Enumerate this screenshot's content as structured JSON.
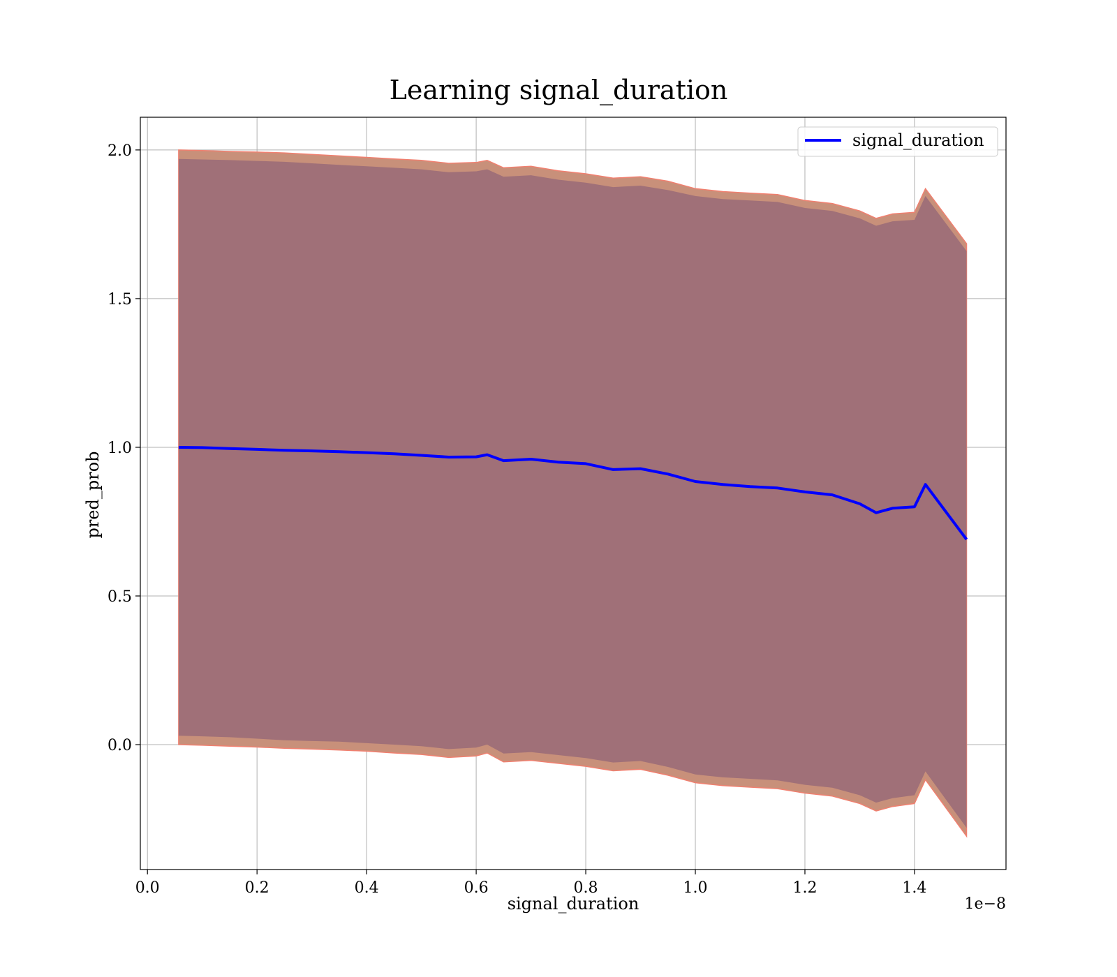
{
  "chart_data": {
    "type": "area",
    "title": "Learning signal_duration",
    "xlabel": "signal_duration",
    "ylabel": "pred_prob",
    "x_offset_text": "1e−8",
    "xlim": [
      -0.013,
      1.567
    ],
    "ylim": [
      -0.42,
      2.11
    ],
    "x_ticks": [
      0.0,
      0.2,
      0.4,
      0.6,
      0.8,
      1.0,
      1.2,
      1.4
    ],
    "x_tick_labels": [
      "0.0",
      "0.2",
      "0.4",
      "0.6",
      "0.8",
      "1.0",
      "1.2",
      "1.4"
    ],
    "y_ticks": [
      0.0,
      0.5,
      1.0,
      1.5,
      2.0
    ],
    "y_tick_labels": [
      "0.0",
      "0.5",
      "1.0",
      "1.5",
      "2.0"
    ],
    "grid": true,
    "legend_position": "top-right",
    "colors": {
      "line": "#0000ff",
      "band_outer": "#c8907a",
      "band_outer_edge": "#f08070",
      "band_inner": "#a07078",
      "grid": "#b0b0b0"
    },
    "series": [
      {
        "name": "signal_duration",
        "x": [
          0.057,
          0.1,
          0.15,
          0.2,
          0.25,
          0.3,
          0.35,
          0.4,
          0.45,
          0.5,
          0.55,
          0.6,
          0.62,
          0.65,
          0.7,
          0.75,
          0.8,
          0.85,
          0.9,
          0.95,
          1.0,
          1.05,
          1.1,
          1.15,
          1.2,
          1.25,
          1.3,
          1.33,
          1.36,
          1.4,
          1.42,
          1.495
        ],
        "y": [
          1.0,
          0.999,
          0.996,
          0.993,
          0.99,
          0.988,
          0.985,
          0.982,
          0.978,
          0.973,
          0.967,
          0.968,
          0.975,
          0.955,
          0.96,
          0.95,
          0.945,
          0.925,
          0.928,
          0.91,
          0.885,
          0.875,
          0.868,
          0.863,
          0.85,
          0.84,
          0.81,
          0.78,
          0.795,
          0.8,
          0.875,
          0.69
        ]
      }
    ],
    "bands": {
      "outer_upper": [
        2.0,
        1.998,
        1.995,
        1.993,
        1.99,
        1.985,
        1.98,
        1.975,
        1.97,
        1.965,
        1.955,
        1.958,
        1.965,
        1.94,
        1.945,
        1.93,
        1.92,
        1.905,
        1.91,
        1.895,
        1.87,
        1.86,
        1.855,
        1.85,
        1.83,
        1.82,
        1.795,
        1.77,
        1.785,
        1.79,
        1.87,
        1.685
      ],
      "inner_upper": [
        1.97,
        1.968,
        1.966,
        1.963,
        1.96,
        1.955,
        1.95,
        1.945,
        1.94,
        1.935,
        1.925,
        1.928,
        1.935,
        1.91,
        1.915,
        1.9,
        1.89,
        1.875,
        1.88,
        1.865,
        1.845,
        1.835,
        1.83,
        1.825,
        1.805,
        1.795,
        1.77,
        1.745,
        1.76,
        1.765,
        1.845,
        1.66
      ],
      "inner_lower": [
        0.03,
        0.028,
        0.025,
        0.02,
        0.015,
        0.012,
        0.01,
        0.005,
        0.0,
        -0.005,
        -0.015,
        -0.01,
        0.0,
        -0.03,
        -0.025,
        -0.035,
        -0.045,
        -0.06,
        -0.055,
        -0.075,
        -0.1,
        -0.11,
        -0.115,
        -0.12,
        -0.135,
        -0.145,
        -0.17,
        -0.195,
        -0.18,
        -0.17,
        -0.09,
        -0.28
      ],
      "outer_lower": [
        0.0,
        -0.002,
        -0.005,
        -0.008,
        -0.012,
        -0.015,
        -0.018,
        -0.022,
        -0.028,
        -0.033,
        -0.043,
        -0.038,
        -0.028,
        -0.058,
        -0.053,
        -0.063,
        -0.073,
        -0.088,
        -0.083,
        -0.103,
        -0.128,
        -0.138,
        -0.143,
        -0.148,
        -0.163,
        -0.173,
        -0.198,
        -0.223,
        -0.208,
        -0.198,
        -0.118,
        -0.308
      ]
    }
  }
}
